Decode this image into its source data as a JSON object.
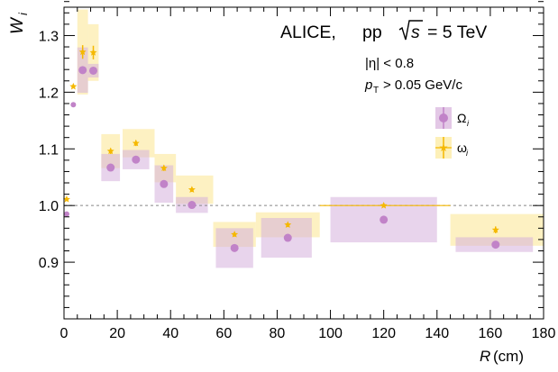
{
  "chart_data": {
    "type": "scatter",
    "title": "ALICE,  pp  √s = 5 TeV",
    "annotations": {
      "experiment": "ALICE,",
      "system": "pp",
      "sqrt_s": "s",
      "energy": "= 5 TeV",
      "eta_cut": "|η| < 0.8",
      "pt_prefix": "p",
      "pt_sub": "T",
      "pt_cut": "> 0.05 GeV/c"
    },
    "xlabel": "R (cm)",
    "xlabel_var": "R",
    "xlabel_unit": "(cm)",
    "ylabel": "W",
    "ylabel_sub": "i",
    "xlim": [
      0,
      180
    ],
    "ylim": [
      0.8,
      1.35
    ],
    "x_ticks": [
      0,
      20,
      40,
      60,
      80,
      100,
      120,
      140,
      160,
      180
    ],
    "y_ticks": [
      0.9,
      1.0,
      1.1,
      1.2,
      1.3
    ],
    "reference_line": 1.0,
    "legend_position": "top-right",
    "colors": {
      "omega_big": "#c183c8",
      "omega_small": "#f5b800"
    },
    "series": [
      {
        "name": "Ω",
        "name_sub": "i",
        "color": "#c183c8",
        "marker": "circle",
        "points": [
          {
            "x": 1,
            "y": 0.985,
            "xlo": 0,
            "xhi": 2,
            "sys": 0.0
          },
          {
            "x": 3.5,
            "y": 1.178,
            "xlo": 3,
            "xhi": 4,
            "sys": 0.0
          },
          {
            "x": 7,
            "y": 1.239,
            "xlo": 5,
            "xhi": 9,
            "sys": 0.04
          },
          {
            "x": 11,
            "y": 1.238,
            "xlo": 9,
            "xhi": 13,
            "sys": 0.012
          },
          {
            "x": 17.5,
            "y": 1.067,
            "xlo": 14,
            "xhi": 21,
            "sys": 0.024
          },
          {
            "x": 27,
            "y": 1.081,
            "xlo": 22,
            "xhi": 32,
            "sys": 0.017
          },
          {
            "x": 37.5,
            "y": 1.038,
            "xlo": 34,
            "xhi": 41,
            "sys": 0.033
          },
          {
            "x": 48,
            "y": 1.001,
            "xlo": 42,
            "xhi": 54,
            "sys": 0.014
          },
          {
            "x": 64,
            "y": 0.925,
            "xlo": 57,
            "xhi": 71,
            "sys": 0.035
          },
          {
            "x": 84,
            "y": 0.943,
            "xlo": 74,
            "xhi": 93,
            "sys": 0.035
          },
          {
            "x": 120,
            "y": 0.975,
            "xlo": 100,
            "xhi": 140,
            "sys": 0.04
          },
          {
            "x": 162,
            "y": 0.931,
            "xlo": 147,
            "xhi": 176,
            "sys": 0.013
          }
        ]
      },
      {
        "name": "ω",
        "name_sub": "i",
        "color": "#f5b800",
        "marker": "star",
        "points": [
          {
            "x": 1,
            "y": 1.011,
            "xlo": 0,
            "xhi": 2,
            "err": 0.0,
            "sys": 0.0
          },
          {
            "x": 3.5,
            "y": 1.21,
            "xlo": 3,
            "xhi": 4,
            "err": 0.0,
            "sys": 0.0
          },
          {
            "x": 7,
            "y": 1.271,
            "xlo": 5,
            "xhi": 9,
            "err": 0.012,
            "sys": 0.075
          },
          {
            "x": 11,
            "y": 1.27,
            "xlo": 9,
            "xhi": 13,
            "err": 0.012,
            "sys": 0.05
          },
          {
            "x": 17.5,
            "y": 1.096,
            "xlo": 14,
            "xhi": 21,
            "err": 0.005,
            "sys": 0.03
          },
          {
            "x": 27,
            "y": 1.11,
            "xlo": 22,
            "xhi": 34,
            "err": 0.005,
            "sys": 0.025
          },
          {
            "x": 37.5,
            "y": 1.066,
            "xlo": 34,
            "xhi": 42,
            "err": 0.005,
            "sys": 0.025
          },
          {
            "x": 48,
            "y": 1.028,
            "xlo": 42,
            "xhi": 56,
            "err": 0.004,
            "sys": 0.025
          },
          {
            "x": 64,
            "y": 0.949,
            "xlo": 56,
            "xhi": 72,
            "err": 0.004,
            "sys": 0.022
          },
          {
            "x": 84,
            "y": 0.966,
            "xlo": 72,
            "xhi": 96,
            "err": 0.004,
            "sys": 0.022
          },
          {
            "x": 120,
            "y": 1.0,
            "xlo": 96,
            "xhi": 145,
            "err": 0.003,
            "sys": 0.0
          },
          {
            "x": 162,
            "y": 0.957,
            "xlo": 145,
            "xhi": 180,
            "err": 0.006,
            "sys": 0.028
          }
        ]
      }
    ]
  }
}
